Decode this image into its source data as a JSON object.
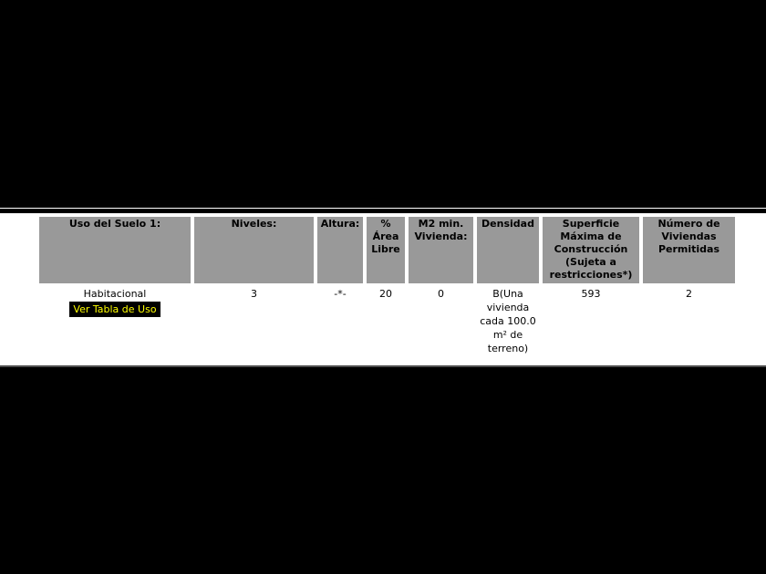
{
  "colors": {
    "header_bg": "#999999",
    "header_text": "#000000",
    "body_text": "#000000",
    "highlight_bg": "#000000",
    "highlight_text": "#ffff00",
    "letterbox": "#000000",
    "content_bg": "#ffffff"
  },
  "table": {
    "headers": [
      "Uso del Suelo 1:",
      "Niveles:",
      "Altura:",
      "% Área Libre",
      "M2 min. Vivienda:",
      "Densidad",
      "Superficie Máxima de Construcción (Sujeta a restricciones*)",
      "Número de Viviendas Permitidas"
    ],
    "row": {
      "uso_del_suelo": "Habitacional",
      "uso_link": "Ver Tabla de Uso",
      "niveles": "3",
      "altura": "-*-",
      "area_libre": "20",
      "m2_min_vivienda": "0",
      "densidad": "B(Una\nvivienda\ncada 100.0\nm² de\nterreno)",
      "superficie_maxima": "593",
      "viviendas_permitidas": "2"
    }
  }
}
